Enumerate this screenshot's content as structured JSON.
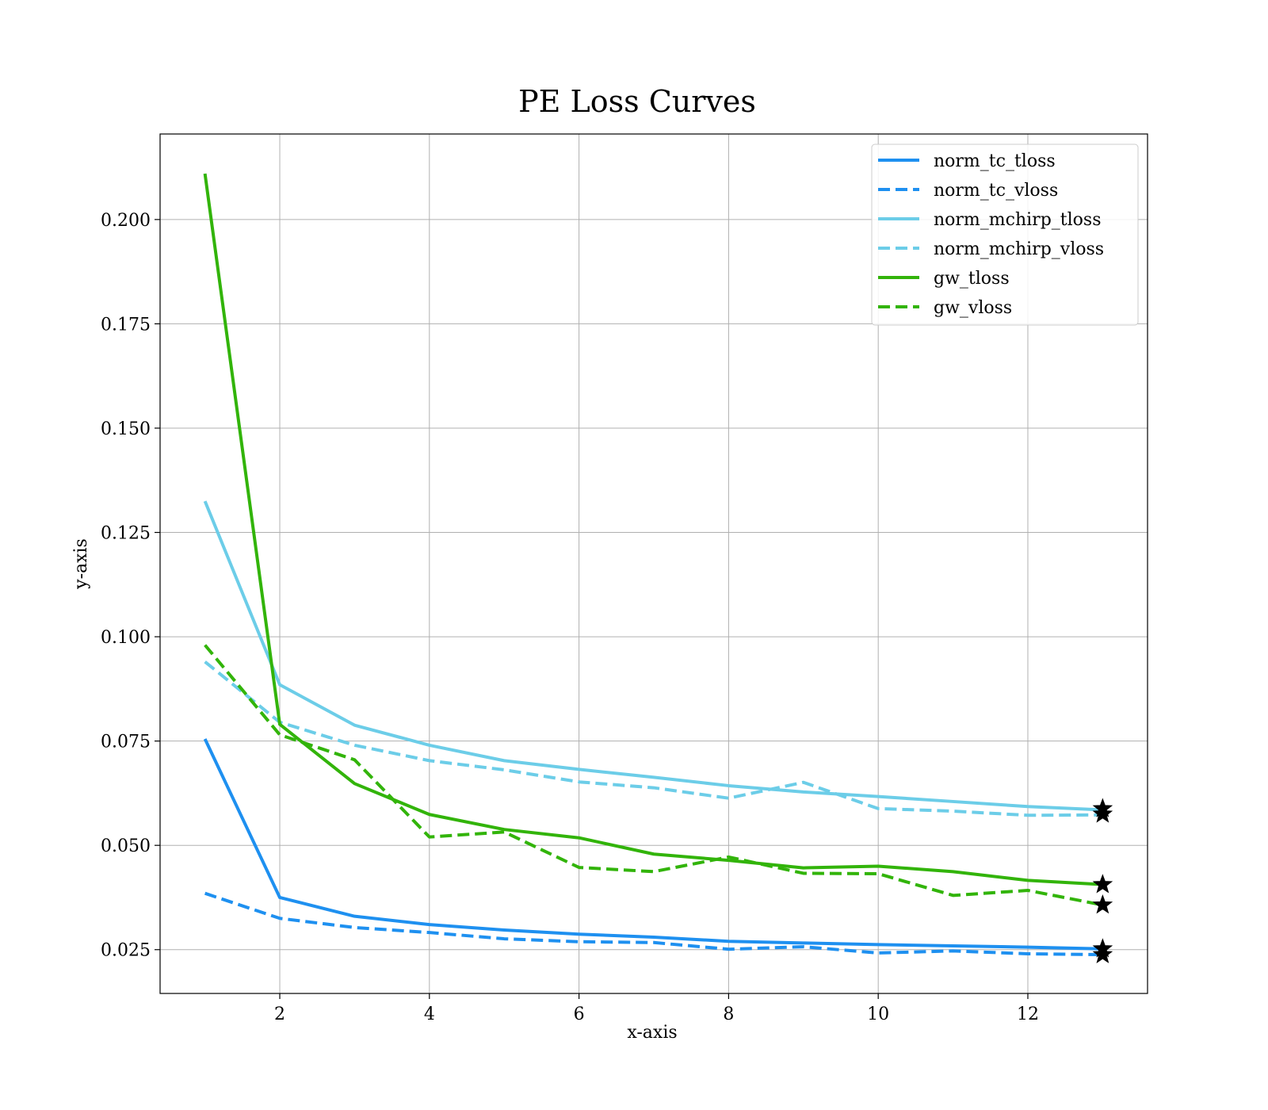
{
  "chart_data": {
    "type": "line",
    "title": "PE Loss Curves",
    "xlabel": "x-axis",
    "ylabel": "y-axis",
    "xlim": [
      0.4,
      13.6
    ],
    "ylim": [
      0.0145,
      0.2205
    ],
    "xticks": [
      2,
      4,
      6,
      8,
      10,
      12
    ],
    "xtick_labels": [
      "2",
      "4",
      "6",
      "8",
      "10",
      "12"
    ],
    "yticks": [
      0.025,
      0.05,
      0.075,
      0.1,
      0.125,
      0.15,
      0.175,
      0.2
    ],
    "ytick_labels": [
      "0.025",
      "0.050",
      "0.075",
      "0.100",
      "0.125",
      "0.150",
      "0.175",
      "0.200"
    ],
    "grid": true,
    "legend_position": "top-right",
    "x": [
      1,
      2,
      3,
      4,
      5,
      6,
      7,
      8,
      9,
      10,
      11,
      12,
      13
    ],
    "series": [
      {
        "name": "norm_tc_tloss",
        "color": "#1e90f0",
        "dash": false,
        "values": [
          0.0755,
          0.0375,
          0.033,
          0.031,
          0.0297,
          0.0287,
          0.028,
          0.027,
          0.0266,
          0.0262,
          0.0259,
          0.0256,
          0.0252
        ]
      },
      {
        "name": "norm_tc_vloss",
        "color": "#1e90f0",
        "dash": true,
        "values": [
          0.0385,
          0.0325,
          0.0303,
          0.0291,
          0.0276,
          0.0269,
          0.0267,
          0.0251,
          0.0257,
          0.0242,
          0.0247,
          0.024,
          0.0238
        ]
      },
      {
        "name": "norm_mchirp_tloss",
        "color": "#6ccde8",
        "dash": false,
        "values": [
          0.1325,
          0.0885,
          0.0788,
          0.074,
          0.0703,
          0.0682,
          0.0663,
          0.0643,
          0.0628,
          0.0617,
          0.0605,
          0.0593,
          0.0585
        ]
      },
      {
        "name": "norm_mchirp_vloss",
        "color": "#6ccde8",
        "dash": true,
        "values": [
          0.094,
          0.0795,
          0.074,
          0.0703,
          0.0681,
          0.0652,
          0.0638,
          0.0613,
          0.0651,
          0.0588,
          0.0582,
          0.0572,
          0.0573
        ]
      },
      {
        "name": "gw_tloss",
        "color": "#32b40a",
        "dash": false,
        "values": [
          0.211,
          0.079,
          0.0648,
          0.0574,
          0.0538,
          0.0518,
          0.0479,
          0.0464,
          0.0446,
          0.045,
          0.0437,
          0.0416,
          0.0406
        ]
      },
      {
        "name": "gw_vloss",
        "color": "#32b40a",
        "dash": true,
        "values": [
          0.098,
          0.0765,
          0.0705,
          0.052,
          0.0532,
          0.0447,
          0.0437,
          0.0472,
          0.0433,
          0.0432,
          0.038,
          0.0392,
          0.0357
        ]
      }
    ],
    "markers": [
      {
        "type": "star",
        "color": "#000000",
        "x": 13,
        "y": 0.0588
      },
      {
        "type": "star",
        "color": "#000000",
        "x": 13,
        "y": 0.0575
      },
      {
        "type": "star",
        "color": "#000000",
        "x": 13,
        "y": 0.0406
      },
      {
        "type": "star",
        "color": "#000000",
        "x": 13,
        "y": 0.0357
      },
      {
        "type": "star",
        "color": "#000000",
        "x": 13,
        "y": 0.0252
      },
      {
        "type": "star",
        "color": "#000000",
        "x": 13,
        "y": 0.0238
      }
    ]
  }
}
